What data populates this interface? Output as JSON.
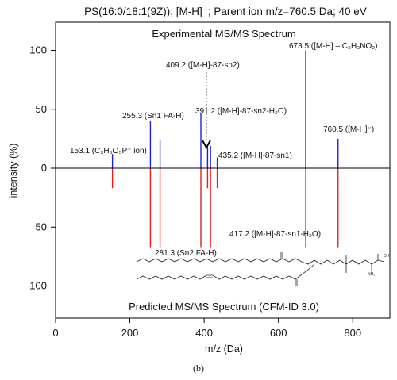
{
  "chart_data": {
    "type": "bar",
    "title": "PS(16:0/18:1(9Z)); [M-H]⁻; Parent ion m/z=760.5 Da; 40 eV",
    "xlabel": "m/z (Da)",
    "ylabel": "intensity (%)",
    "xlim": [
      0,
      900
    ],
    "ylim_top": [
      0,
      120
    ],
    "ylim_bottom": [
      0,
      120
    ],
    "x_ticks": [
      "0",
      "200",
      "400",
      "600",
      "800"
    ],
    "x_tick_values": [
      0,
      200,
      400,
      600,
      800
    ],
    "y_ticks_top": [
      "0",
      "50",
      "100"
    ],
    "y_ticks_bottom": [
      "50",
      "100"
    ],
    "y_tick_values": [
      0,
      50,
      100
    ],
    "grid": false,
    "legend": "none",
    "colors": {
      "experimental": "#2222cc",
      "predicted": "#e02020",
      "axis": "#000000"
    },
    "series": [
      {
        "name": "Experimental MS/MS Spectrum",
        "peaks": [
          {
            "mz": 153.1,
            "intensity": 12
          },
          {
            "mz": 255.3,
            "intensity": 40
          },
          {
            "mz": 281.3,
            "intensity": 24
          },
          {
            "mz": 391.2,
            "intensity": 47
          },
          {
            "mz": 409.2,
            "intensity": 18
          },
          {
            "mz": 417.2,
            "intensity": 19
          },
          {
            "mz": 435.2,
            "intensity": 9
          },
          {
            "mz": 673.5,
            "intensity": 100
          },
          {
            "mz": 760.5,
            "intensity": 25
          }
        ]
      },
      {
        "name": "Predicted MS/MS Spectrum (CFM-ID 3.0)",
        "peaks": [
          {
            "mz": 153.1,
            "intensity": 17
          },
          {
            "mz": 255.3,
            "intensity": 67
          },
          {
            "mz": 281.3,
            "intensity": 67
          },
          {
            "mz": 391.2,
            "intensity": 67
          },
          {
            "mz": 409.2,
            "intensity": 17
          },
          {
            "mz": 417.2,
            "intensity": 67
          },
          {
            "mz": 435.2,
            "intensity": 17
          },
          {
            "mz": 673.5,
            "intensity": 67
          },
          {
            "mz": 760.5,
            "intensity": 67
          }
        ]
      }
    ],
    "annotations": [
      {
        "text": "153.1 (C₃H₆O₅P⁻ ion)"
      },
      {
        "text": "255.3 (Sn1 FA-H)"
      },
      {
        "text": "409.2 ([M-H]-87-sn2)"
      },
      {
        "text": "391.2 ([M-H]-87-sn2-H₂O)"
      },
      {
        "text": "435.2 ([M-H]-87-sn1)"
      },
      {
        "text": "673.5 ([M-H] – C₃H₃NO₂)"
      },
      {
        "text": "760.5 ([M-H]⁻)"
      },
      {
        "text": "417.2 ([M-H]-87-sn1-H₂O)"
      },
      {
        "text": "281.3 (Sn2 FA-H)"
      }
    ],
    "panel_labels": {
      "top": "Experimental MS/MS Spectrum",
      "bottom": "Predicted MS/MS Spectrum (CFM-ID 3.0)"
    },
    "structure_labels": {
      "hydroxyl": "OH",
      "amine": "NH₂"
    }
  },
  "caption": "(b)"
}
